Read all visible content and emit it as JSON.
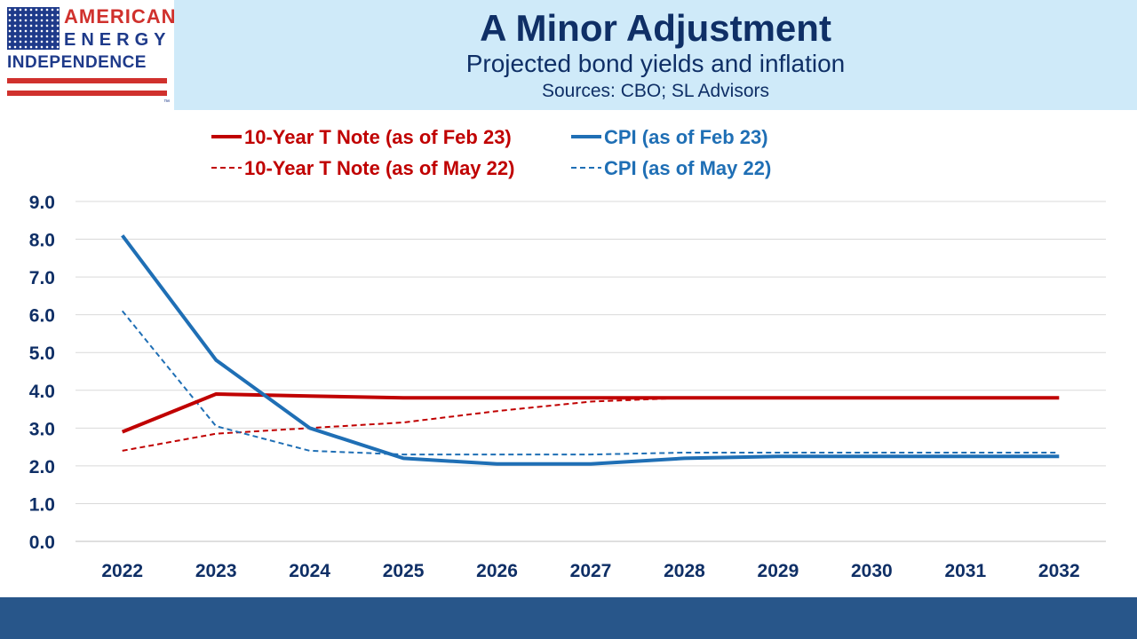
{
  "logo": {
    "line1": "AMERICAN",
    "line2": "ENERGY",
    "line3": "INDEPENDENCE",
    "tm": "™"
  },
  "header": {
    "title": "A Minor Adjustment",
    "subtitle": "Projected bond yields and inflation",
    "sources": "Sources: CBO; SL Advisors"
  },
  "colors": {
    "header_bg": "#cfeaf9",
    "title": "#0f2f66",
    "red_series": "#c00000",
    "blue_series": "#1f6fb5",
    "footer": "#28568a"
  },
  "chart_data": {
    "type": "line",
    "title": "",
    "xlabel": "",
    "ylabel": "",
    "x": [
      "2022",
      "2023",
      "2024",
      "2025",
      "2026",
      "2027",
      "2028",
      "2029",
      "2030",
      "2031",
      "2032"
    ],
    "ylim": [
      0,
      9
    ],
    "yticks": [
      "0.0",
      "1.0",
      "2.0",
      "3.0",
      "4.0",
      "5.0",
      "6.0",
      "7.0",
      "8.0",
      "9.0"
    ],
    "grid": true,
    "legend_position": "top-left",
    "series": [
      {
        "name": "10-Year T Note (as of Feb 23)",
        "color": "#c00000",
        "style": "solid",
        "values": [
          2.9,
          3.9,
          3.85,
          3.8,
          3.8,
          3.8,
          3.8,
          3.8,
          3.8,
          3.8,
          3.8
        ]
      },
      {
        "name": "CPI (as of Feb 23)",
        "color": "#1f6fb5",
        "style": "solid",
        "values": [
          8.1,
          4.8,
          3.0,
          2.2,
          2.05,
          2.05,
          2.2,
          2.25,
          2.25,
          2.25,
          2.25
        ]
      },
      {
        "name": "10-Year T Note (as of May 22)",
        "color": "#c00000",
        "style": "dashed",
        "values": [
          2.4,
          2.85,
          3.0,
          3.15,
          3.45,
          3.7,
          3.8,
          null,
          null,
          null,
          null
        ]
      },
      {
        "name": "CPI (as of May 22)",
        "color": "#1f6fb5",
        "style": "dashed",
        "values": [
          6.1,
          3.05,
          2.4,
          2.3,
          2.3,
          2.3,
          2.35,
          2.35,
          2.35,
          2.35,
          2.35
        ]
      }
    ]
  }
}
